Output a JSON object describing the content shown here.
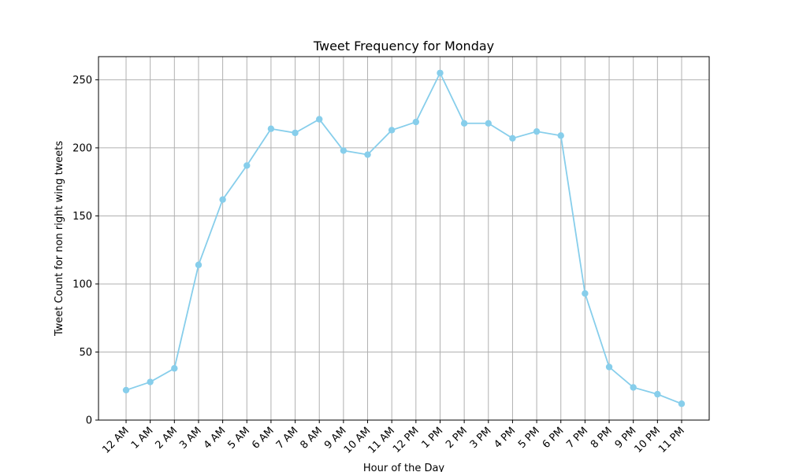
{
  "chart_data": {
    "type": "line",
    "title": "Tweet Frequency for Monday",
    "xlabel": "Hour of the Day",
    "ylabel": "Tweet Count for non right wing tweets",
    "categories": [
      "12 AM",
      "1 AM",
      "2 AM",
      "3 AM",
      "4 AM",
      "5 AM",
      "6 AM",
      "7 AM",
      "8 AM",
      "9 AM",
      "10 AM",
      "11 AM",
      "12 PM",
      "1 PM",
      "2 PM",
      "3 PM",
      "4 PM",
      "5 PM",
      "6 PM",
      "7 PM",
      "8 PM",
      "9 PM",
      "10 PM",
      "11 PM"
    ],
    "series": [
      {
        "values": [
          22,
          28,
          38,
          114,
          162,
          187,
          214,
          211,
          221,
          198,
          195,
          213,
          219,
          255,
          218,
          218,
          207,
          212,
          209,
          93,
          39,
          24,
          19,
          12
        ],
        "color": "#87ceeb",
        "marker": "circle"
      }
    ],
    "ylim": [
      0,
      267
    ],
    "yticks": [
      0,
      50,
      100,
      150,
      200,
      250
    ],
    "grid": true,
    "legend": "none"
  }
}
